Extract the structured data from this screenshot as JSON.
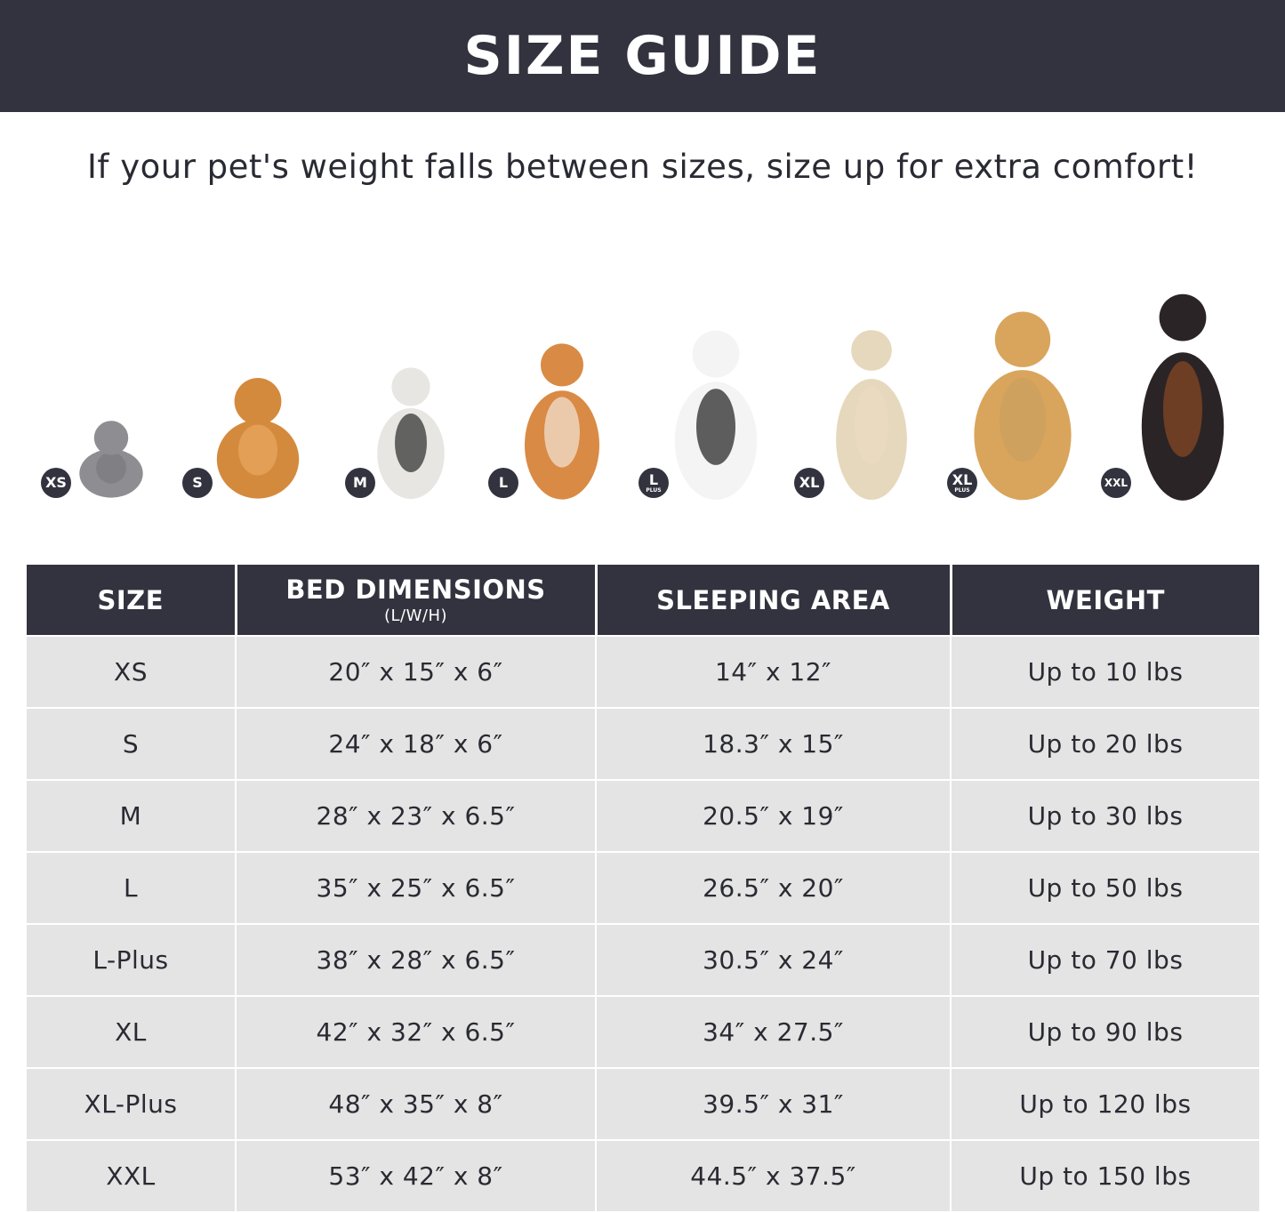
{
  "title": "SIZE GUIDE",
  "subtitle": "If your pet's weight falls between sizes, size up for extra comfort!",
  "colors": {
    "header_bg": "#33333f",
    "row_bg": "#e4e4e4"
  },
  "pets": [
    {
      "badge": "XS",
      "plus": "",
      "animal": "cat"
    },
    {
      "badge": "S",
      "plus": "",
      "animal": "pomeranian"
    },
    {
      "badge": "M",
      "plus": "",
      "animal": "french-bulldog"
    },
    {
      "badge": "L",
      "plus": "",
      "animal": "shiba-inu"
    },
    {
      "badge": "L",
      "plus": "PLUS",
      "animal": "border-collie"
    },
    {
      "badge": "XL",
      "plus": "",
      "animal": "labrador"
    },
    {
      "badge": "XL",
      "plus": "PLUS",
      "animal": "golden-retriever"
    },
    {
      "badge": "XXL",
      "plus": "",
      "animal": "doberman"
    }
  ],
  "table": {
    "headers": {
      "size": "SIZE",
      "bed": "BED DIMENSIONS",
      "bed_unit": "(L/W/H)",
      "sleep": "SLEEPING AREA",
      "weight": "WEIGHT"
    },
    "rows": [
      {
        "size": "XS",
        "bed": "20″ x 15″ x 6″",
        "sleep": "14″ x 12″",
        "weight": "Up to 10 lbs"
      },
      {
        "size": "S",
        "bed": "24″ x 18″ x 6″",
        "sleep": "18.3″ x 15″",
        "weight": "Up to 20 lbs"
      },
      {
        "size": "M",
        "bed": "28″ x 23″ x 6.5″",
        "sleep": "20.5″ x 19″",
        "weight": "Up to 30 lbs"
      },
      {
        "size": "L",
        "bed": "35″ x 25″ x 6.5″",
        "sleep": "26.5″ x 20″",
        "weight": "Up to 50 lbs"
      },
      {
        "size": "L-Plus",
        "bed": "38″ x 28″ x 6.5″",
        "sleep": "30.5″ x 24″",
        "weight": "Up to 70 lbs"
      },
      {
        "size": "XL",
        "bed": "42″ x 32″ x 6.5″",
        "sleep": "34″ x 27.5″",
        "weight": "Up to 90 lbs"
      },
      {
        "size": "XL-Plus",
        "bed": "48″ x 35″ x 8″",
        "sleep": "39.5″ x 31″",
        "weight": "Up to 120 lbs"
      },
      {
        "size": "XXL",
        "bed": "53″ x 42″ x 8″",
        "sleep": "44.5″ x 37.5″",
        "weight": "Up to 150 lbs"
      }
    ]
  }
}
